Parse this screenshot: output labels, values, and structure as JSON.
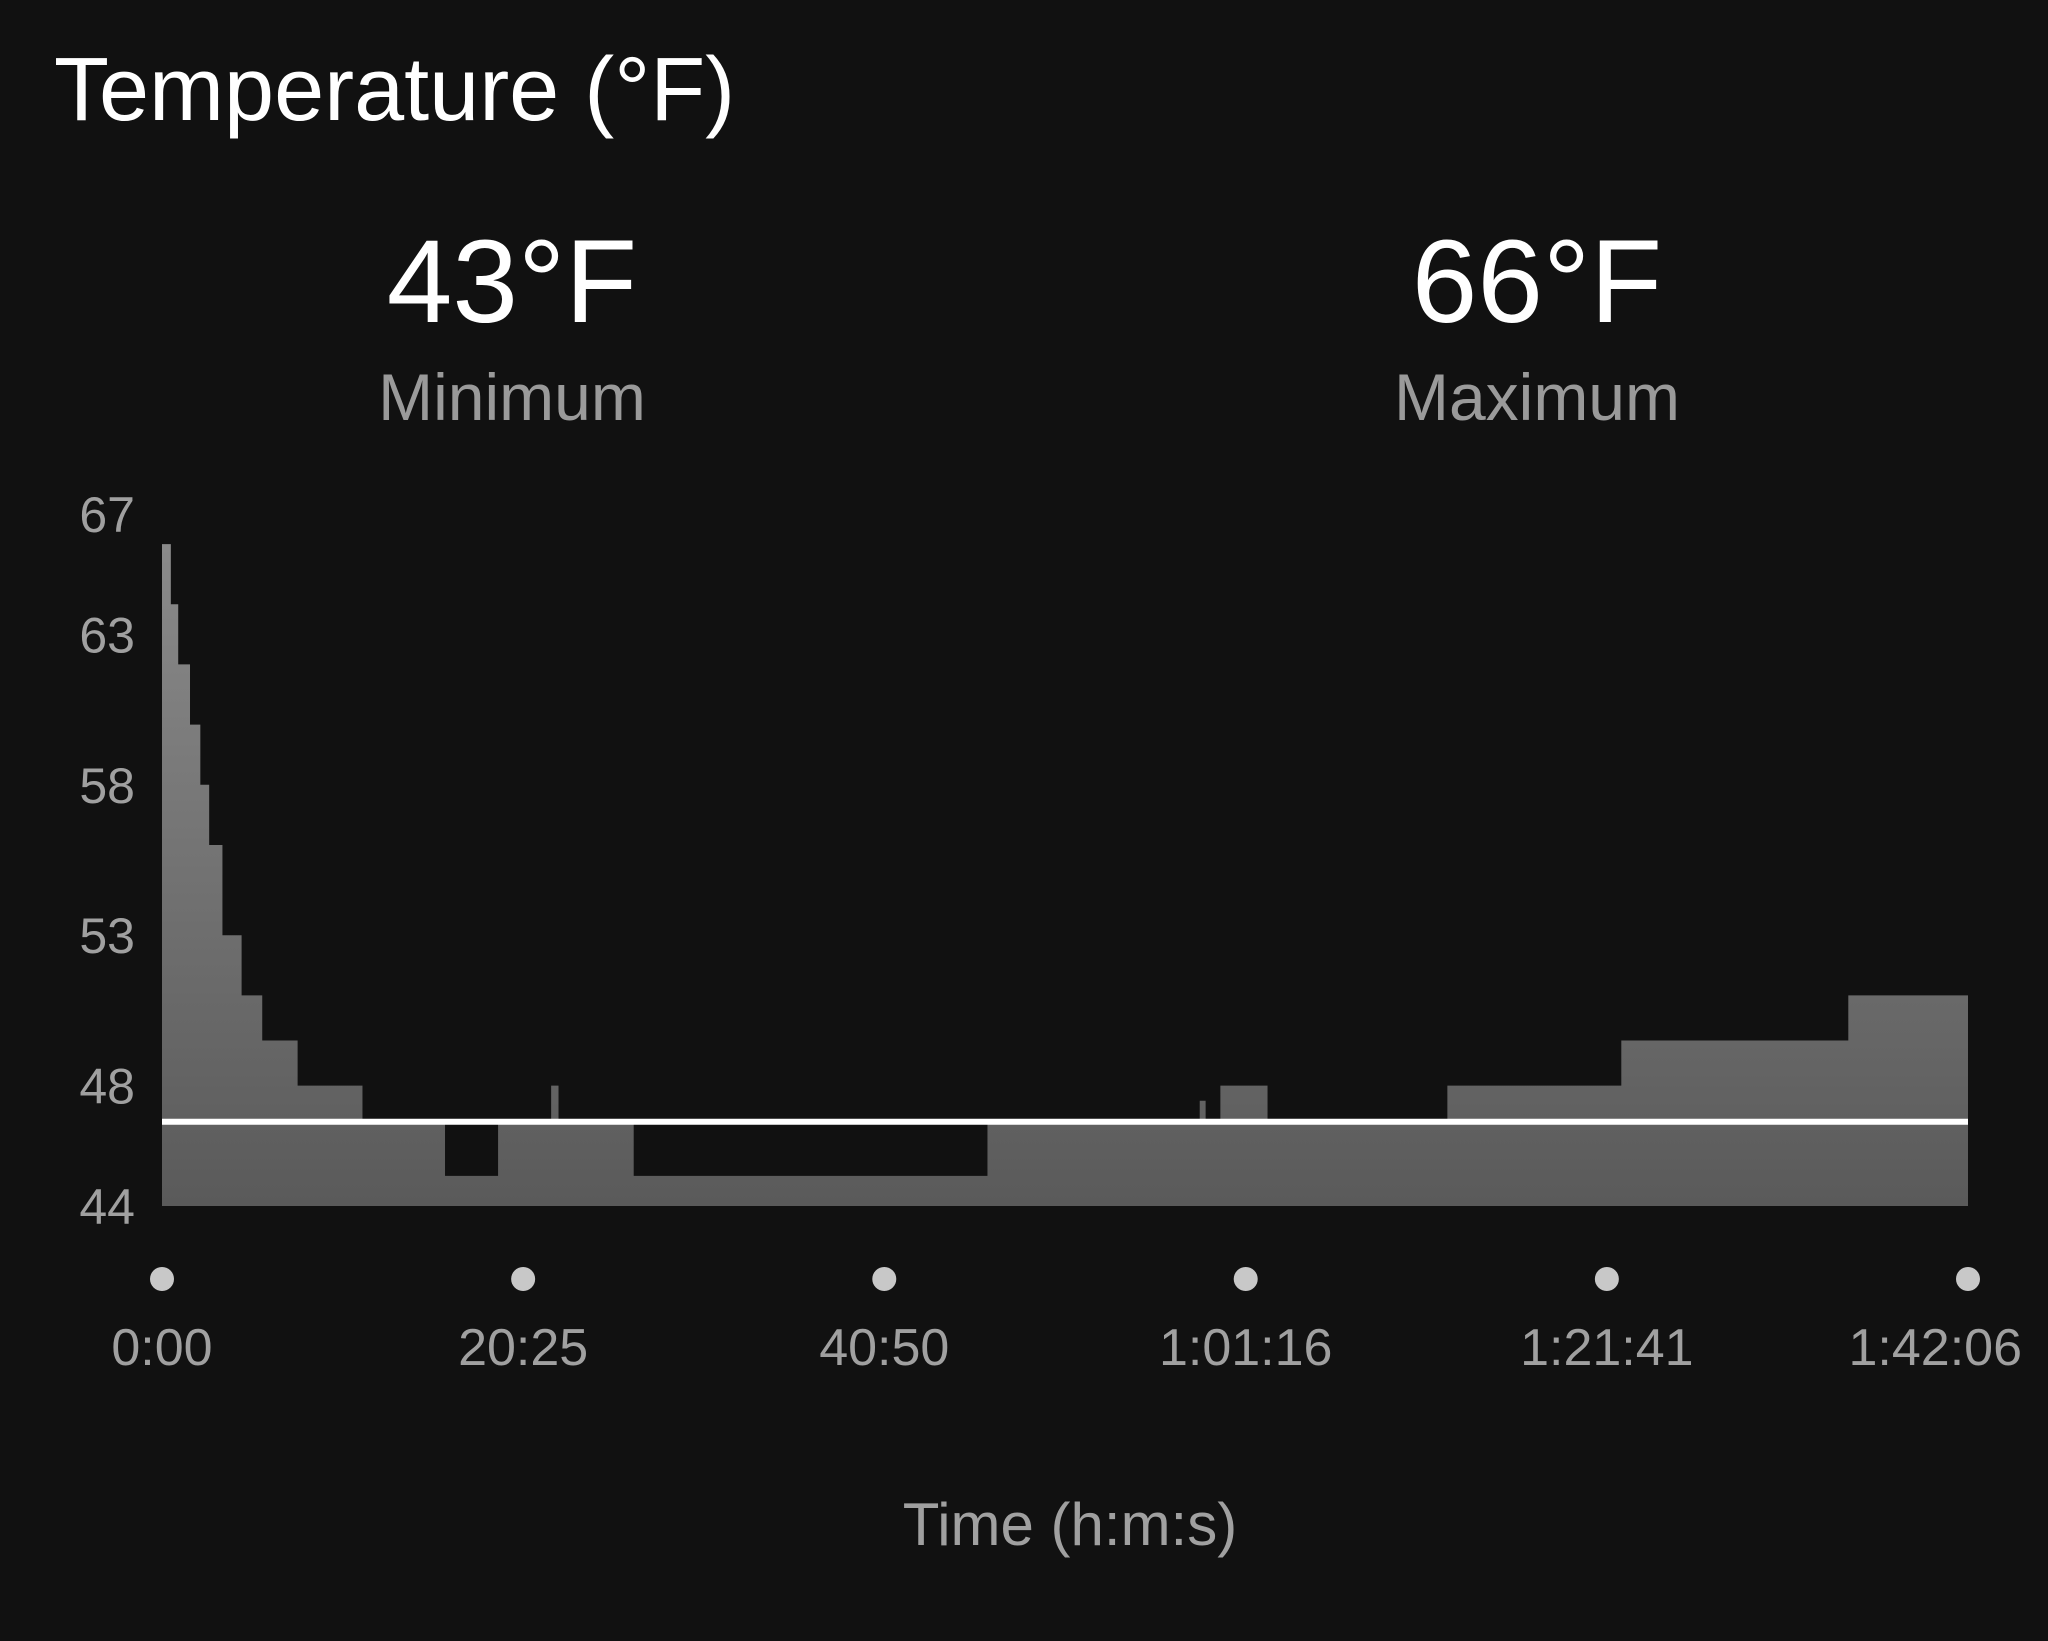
{
  "title": "Temperature (°F)",
  "summary": {
    "minimum": {
      "value": "43°F",
      "label": "Minimum"
    },
    "maximum": {
      "value": "66°F",
      "label": "Maximum"
    }
  },
  "colors": {
    "background": "#111111",
    "area_top": "#8a8a8a",
    "area_bottom": "#5a5a5a",
    "reference_line": "#ffffff",
    "dot": "#c8c8c8",
    "tick_text": "#a0a0a0"
  },
  "chart_data": {
    "type": "area",
    "xlabel": "Time (h:m:s)",
    "ylabel": "",
    "x_unit": "seconds",
    "xlim": [
      0,
      6126
    ],
    "ylim": [
      44,
      67
    ],
    "yticks": [
      67,
      63,
      58,
      53,
      48,
      44
    ],
    "xticks": [
      {
        "value": 0,
        "label": "0:00"
      },
      {
        "value": 1225,
        "label": "20:25"
      },
      {
        "value": 2450,
        "label": "40:50"
      },
      {
        "value": 3676,
        "label": "1:01:16"
      },
      {
        "value": 4901,
        "label": "1:21:41"
      },
      {
        "value": 6126,
        "label": "1:42:06"
      }
    ],
    "reference_line": 46.8,
    "grid": false,
    "series": [
      {
        "step": "post",
        "x": [
          0,
          30,
          55,
          95,
          130,
          160,
          205,
          270,
          340,
          460,
          600,
          680,
          960,
          1140,
          1320,
          1345,
          1600,
          2800,
          3520,
          3540,
          3590,
          3750,
          4360,
          4420,
          4950,
          5590,
          5720,
          6126
        ],
        "y": [
          66,
          64,
          62,
          60,
          58,
          56,
          53,
          51,
          49.5,
          48,
          48,
          46.8,
          45,
          46.8,
          48,
          46.8,
          45,
          46.8,
          47.5,
          46.8,
          48,
          46.8,
          48,
          48,
          49.5,
          49.5,
          51,
          51
        ]
      }
    ]
  }
}
